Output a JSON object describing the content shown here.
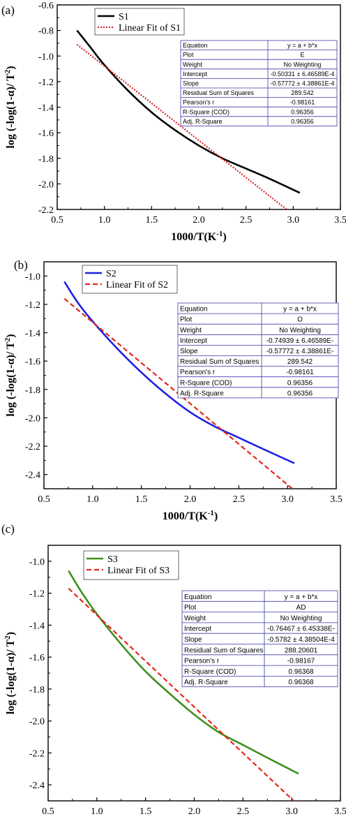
{
  "chart_data": [
    {
      "panel_label": "(a)",
      "type": "line",
      "xlabel": "1000/T(K",
      "xlabel_sup": "-1",
      "xlabel_tail": ")",
      "ylabel": "log (-log(1-α)/ T",
      "ylabel_sup": "2",
      "ylabel_tail": ")",
      "xlim": [
        0.5,
        3.5
      ],
      "ylim": [
        -2.2,
        -0.6
      ],
      "xticks": [
        0.5,
        1.0,
        1.5,
        2.0,
        2.5,
        3.0,
        3.5
      ],
      "yticks": [
        -2.2,
        -2.0,
        -1.8,
        -1.6,
        -1.4,
        -1.2,
        -1.0,
        -0.8,
        -0.6
      ],
      "xtick_labels": [
        "0.5",
        "1.0",
        "1.5",
        "2.0",
        "2.5",
        "3.0",
        "3.5"
      ],
      "ytick_labels": [
        "-2.2",
        "-2.0",
        "-1.8",
        "-1.6",
        "-1.4",
        "-1.2",
        "-1.0",
        "-0.8",
        "-0.6"
      ],
      "series": [
        {
          "name": "S1",
          "color": "#000000",
          "style": "solid",
          "points": [
            [
              0.71,
              -0.8
            ],
            [
              0.85,
              -0.93
            ],
            [
              1.0,
              -1.07
            ],
            [
              1.25,
              -1.27
            ],
            [
              1.5,
              -1.44
            ],
            [
              1.75,
              -1.58
            ],
            [
              2.0,
              -1.7
            ],
            [
              2.25,
              -1.8
            ],
            [
              2.5,
              -1.88
            ],
            [
              2.75,
              -1.96
            ],
            [
              3.07,
              -2.07
            ]
          ]
        },
        {
          "name": "Linear Fit of S1",
          "color": "#d62728",
          "style": "dotted",
          "points": [
            [
              0.71,
              -0.91
            ],
            [
              2.93,
              -2.2
            ]
          ]
        }
      ],
      "table": [
        [
          "Equation",
          "y = a + b*x"
        ],
        [
          "Plot",
          "E"
        ],
        [
          "Weight",
          "No Weighting"
        ],
        [
          "Intercept",
          "-0.50331 ± 6.46589E-4"
        ],
        [
          "Slope",
          "-0.57772 ± 4.38861E-4"
        ],
        [
          "Residual Sum of Squares",
          "289.542"
        ],
        [
          "Pearson's r",
          "-0.98161"
        ],
        [
          "R-Square (COD)",
          "0.96356"
        ],
        [
          "Adj. R-Square",
          "0.96356"
        ]
      ]
    },
    {
      "panel_label": "(b)",
      "type": "line",
      "xlabel": "1000/T(K",
      "xlabel_sup": "-1",
      "xlabel_tail": ")",
      "ylabel": "log (-log(1-α)/ T",
      "ylabel_sup": "2",
      "ylabel_tail": ")",
      "xlim": [
        0.5,
        3.5
      ],
      "ylim": [
        -2.5,
        -0.9
      ],
      "xticks": [
        0.5,
        1.0,
        1.5,
        2.0,
        2.5,
        3.0,
        3.5
      ],
      "yticks": [
        -2.4,
        -2.2,
        -2.0,
        -1.8,
        -1.6,
        -1.4,
        -1.2,
        -1.0
      ],
      "xtick_labels": [
        "0.5",
        "1.0",
        "1.5",
        "2.0",
        "2.5",
        "3.0",
        "3.5"
      ],
      "ytick_labels": [
        "-2.4",
        "-2.2",
        "-2.0",
        "-1.8",
        "-1.6",
        "-1.4",
        "-1.2",
        "-1.0"
      ],
      "series": [
        {
          "name": "S2",
          "color": "#1f1fe6",
          "style": "solid",
          "points": [
            [
              0.71,
              -1.04
            ],
            [
              0.85,
              -1.19
            ],
            [
              1.0,
              -1.32
            ],
            [
              1.25,
              -1.51
            ],
            [
              1.5,
              -1.68
            ],
            [
              1.75,
              -1.83
            ],
            [
              2.0,
              -1.96
            ],
            [
              2.25,
              -2.06
            ],
            [
              2.5,
              -2.14
            ],
            [
              2.75,
              -2.22
            ],
            [
              3.07,
              -2.32
            ]
          ]
        },
        {
          "name": "Linear Fit of S2",
          "color": "#e4261c",
          "style": "dashed",
          "points": [
            [
              0.71,
              -1.16
            ],
            [
              3.05,
              -2.5
            ]
          ]
        }
      ],
      "table": [
        [
          "Equation",
          "y = a + b*x"
        ],
        [
          "Plot",
          "O"
        ],
        [
          "Weight",
          "No Weighting"
        ],
        [
          "Intercept",
          "-0.74939 ± 6.46589E-"
        ],
        [
          "Slope",
          "-0.57772 ± 4.38861E-"
        ],
        [
          "Residual Sum of Squares",
          "289.542"
        ],
        [
          "Pearson's r",
          "-0.98161"
        ],
        [
          "R-Square (COD)",
          "0.96356"
        ],
        [
          "Adj. R-Square",
          "0.96356"
        ]
      ]
    },
    {
      "panel_label": "(c)",
      "type": "line",
      "xlabel": "1000/T(K",
      "xlabel_sup": "-1",
      "xlabel_tail": ")",
      "ylabel": "log (-log(1-α)/ T",
      "ylabel_sup": "2",
      "ylabel_tail": ")",
      "xlim": [
        0.5,
        3.5
      ],
      "ylim": [
        -2.5,
        -0.9
      ],
      "xticks": [
        0.5,
        1.0,
        1.5,
        2.0,
        2.5,
        3.0,
        3.5
      ],
      "yticks": [
        -2.4,
        -2.2,
        -2.0,
        -1.8,
        -1.6,
        -1.4,
        -1.2,
        -1.0
      ],
      "xtick_labels": [
        "0.5",
        "1.0",
        "1.5",
        "2.0",
        "2.5",
        "3.0",
        "3.5"
      ],
      "ytick_labels": [
        "-2.4",
        "-2.2",
        "-2.0",
        "-1.8",
        "-1.6",
        "-1.4",
        "-1.2",
        "-1.0"
      ],
      "series": [
        {
          "name": "S3",
          "color": "#3f8f1f",
          "style": "solid",
          "points": [
            [
              0.71,
              -1.06
            ],
            [
              0.85,
              -1.2
            ],
            [
              1.0,
              -1.33
            ],
            [
              1.25,
              -1.52
            ],
            [
              1.5,
              -1.69
            ],
            [
              1.75,
              -1.83
            ],
            [
              2.0,
              -1.96
            ],
            [
              2.25,
              -2.07
            ],
            [
              2.5,
              -2.15
            ],
            [
              2.75,
              -2.23
            ],
            [
              3.07,
              -2.33
            ]
          ]
        },
        {
          "name": "Linear Fit of S3",
          "color": "#e4261c",
          "style": "dashed",
          "points": [
            [
              0.71,
              -1.17
            ],
            [
              3.02,
              -2.5
            ]
          ]
        }
      ],
      "table": [
        [
          "Equation",
          "y = a + b*x"
        ],
        [
          "Plot",
          "AD"
        ],
        [
          "Weight",
          "No Weighting"
        ],
        [
          "Intercept",
          "-0.76467 ± 6.45338E-"
        ],
        [
          "Slope",
          "-0.5782 ± 4.38504E-4"
        ],
        [
          "Residual Sum of Squares",
          "288.20601"
        ],
        [
          "Pearson's r",
          "-0.98167"
        ],
        [
          "R-Square (COD)",
          "0.96368"
        ],
        [
          "Adj. R-Square",
          "0.96368"
        ]
      ]
    }
  ]
}
